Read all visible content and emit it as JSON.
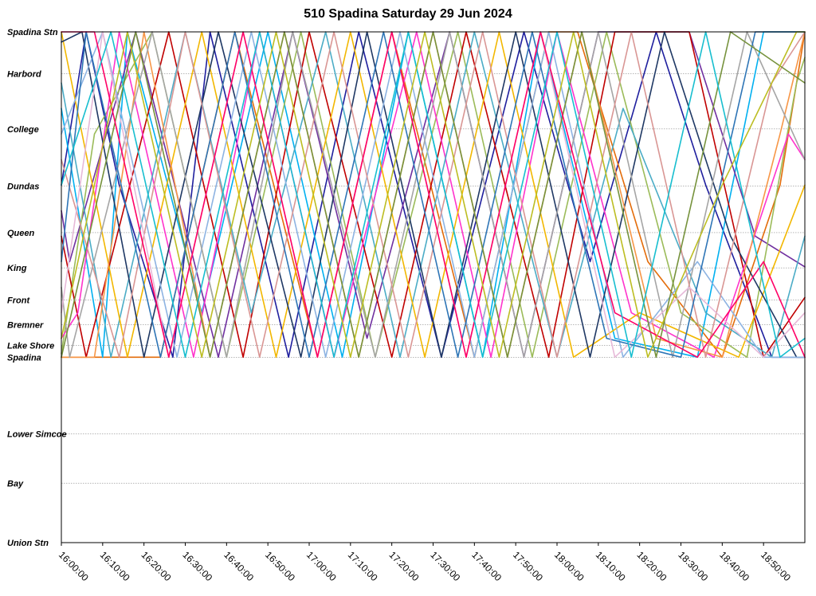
{
  "chart_data": {
    "type": "line",
    "title": "510 Spadina Saturday 29 Jun 2024",
    "xlabel": "",
    "ylabel": "",
    "x_range": [
      "16:00:00",
      "19:00:00"
    ],
    "x_ticks": [
      "16:00:00",
      "16:10:00",
      "16:20:00",
      "16:30:00",
      "16:40:00",
      "16:50:00",
      "17:00:00",
      "17:10:00",
      "17:20:00",
      "17:30:00",
      "17:40:00",
      "17:50:00",
      "18:00:00",
      "18:10:00",
      "18:20:00",
      "18:30:00",
      "18:40:00",
      "18:50:00"
    ],
    "stops": [
      "Spadina Stn",
      "Harbord",
      "College",
      "Dundas",
      "Queen",
      "King",
      "Front",
      "Bremner",
      "Lake Shore",
      "Spadina",
      "Lower Simcoe",
      "Bay",
      "Union Stn"
    ],
    "stop_positions": [
      0,
      0.082,
      0.19,
      0.302,
      0.393,
      0.462,
      0.525,
      0.573,
      0.614,
      0.637,
      0.787,
      0.884,
      1.0
    ],
    "grid": true,
    "legend": "none",
    "colors": [
      "#1f1f9e",
      "#e36c0a",
      "#00b0f0",
      "#7030a0",
      "#9bbb59",
      "#c00000",
      "#ff33cc",
      "#4bacc6",
      "#f2b700",
      "#1f3864",
      "#f79646",
      "#8db3e2",
      "#a5a5a5",
      "#d99694",
      "#2e75b6",
      "#e6b9d8",
      "#76923c",
      "#ff0066",
      "#17becf",
      "#bcbd22",
      "#8c564b",
      "#7f7f7f",
      "#f4b183",
      "#2f5597",
      "#ce2929",
      "#0070c0",
      "#92d050",
      "#ffc000",
      "#5b9bd5",
      "#b30059"
    ],
    "series": [
      {
        "values": [
          [
            "15:59:00",
            0.3
          ],
          [
            "16:06:00",
            0.0
          ],
          [
            "16:14:00",
            0.3
          ],
          [
            "16:27:00",
            0.637
          ],
          [
            "16:36:00",
            0.0
          ],
          [
            "16:55:00",
            0.637
          ],
          [
            "17:12:00",
            0.0
          ],
          [
            "17:32:00",
            0.637
          ],
          [
            "17:52:00",
            0.0
          ],
          [
            "18:08:00",
            0.45
          ],
          [
            "18:24:00",
            0.0
          ],
          [
            "18:36:00",
            0.3
          ],
          [
            "18:52:00",
            0.637
          ],
          [
            "19:00:00",
            0.637
          ]
        ]
      },
      {
        "values": [
          [
            "15:59:00",
            0.637
          ],
          [
            "16:04:00",
            0.637
          ],
          [
            "16:24:00",
            0.637
          ],
          [
            "16:42:00",
            0.0
          ],
          [
            "17:02:00",
            0.637
          ],
          [
            "17:20:00",
            0.0
          ],
          [
            "17:40:00",
            0.637
          ],
          [
            "17:58:00",
            0.0
          ],
          [
            "18:05:00",
            0.0
          ],
          [
            "18:22:00",
            0.45
          ],
          [
            "18:40:00",
            0.637
          ],
          [
            "18:54:00",
            0.3
          ],
          [
            "19:00:00",
            0.0
          ]
        ]
      },
      {
        "values": [
          [
            "15:59:00",
            0.15
          ],
          [
            "16:10:00",
            0.637
          ],
          [
            "16:16:00",
            0.0
          ],
          [
            "16:34:00",
            0.55
          ],
          [
            "16:50:00",
            0.0
          ],
          [
            "17:08:00",
            0.637
          ],
          [
            "17:24:00",
            0.0
          ],
          [
            "17:42:00",
            0.637
          ],
          [
            "17:56:00",
            0.0
          ],
          [
            "18:14:00",
            0.6
          ],
          [
            "18:34:00",
            0.637
          ],
          [
            "18:50:00",
            0.0
          ],
          [
            "19:00:00",
            0.0
          ]
        ]
      },
      {
        "values": [
          [
            "15:59:00",
            0.35
          ],
          [
            "16:02:00",
            0.45
          ],
          [
            "16:18:00",
            0.0
          ],
          [
            "16:38:00",
            0.637
          ],
          [
            "16:56:00",
            0.0
          ],
          [
            "17:14:00",
            0.6
          ],
          [
            "17:34:00",
            0.0
          ],
          [
            "17:52:00",
            0.637
          ],
          [
            "18:10:00",
            0.0
          ],
          [
            "18:28:00",
            0.0
          ],
          [
            "18:32:00",
            0.0
          ],
          [
            "18:48:00",
            0.4
          ],
          [
            "19:00:00",
            0.46
          ]
        ]
      },
      {
        "values": [
          [
            "15:59:00",
            0.63
          ],
          [
            "16:08:00",
            0.2
          ],
          [
            "16:22:00",
            0.0
          ],
          [
            "16:40:00",
            0.637
          ],
          [
            "16:58:00",
            0.0
          ],
          [
            "17:16:00",
            0.637
          ],
          [
            "17:36:00",
            0.0
          ],
          [
            "17:54:00",
            0.637
          ],
          [
            "18:12:00",
            0.0
          ],
          [
            "18:30:00",
            0.55
          ],
          [
            "18:46:00",
            0.637
          ],
          [
            "18:58:00",
            0.1
          ],
          [
            "19:00:00",
            0.05
          ]
        ]
      },
      {
        "values": [
          [
            "15:59:00",
            0.4
          ],
          [
            "16:06:00",
            0.637
          ],
          [
            "16:26:00",
            0.0
          ],
          [
            "16:44:00",
            0.637
          ],
          [
            "17:00:00",
            0.0
          ],
          [
            "17:20:00",
            0.637
          ],
          [
            "17:38:00",
            0.0
          ],
          [
            "17:58:00",
            0.637
          ],
          [
            "18:14:00",
            0.0
          ],
          [
            "18:32:00",
            0.0
          ],
          [
            "18:50:00",
            0.637
          ],
          [
            "19:00:00",
            0.52
          ]
        ]
      },
      {
        "values": [
          [
            "15:59:00",
            0.6
          ],
          [
            "16:04:00",
            0.55
          ],
          [
            "16:14:00",
            0.0
          ],
          [
            "16:32:00",
            0.637
          ],
          [
            "16:48:00",
            0.0
          ],
          [
            "17:06:00",
            0.637
          ],
          [
            "17:26:00",
            0.0
          ],
          [
            "17:44:00",
            0.637
          ],
          [
            "18:00:00",
            0.0
          ],
          [
            "18:18:00",
            0.55
          ],
          [
            "18:38:00",
            0.637
          ],
          [
            "18:56:00",
            0.2
          ],
          [
            "19:00:00",
            0.25
          ]
        ]
      },
      {
        "values": [
          [
            "15:59:00",
            0.1
          ],
          [
            "16:12:00",
            0.637
          ],
          [
            "16:30:00",
            0.0
          ],
          [
            "16:46:00",
            0.55
          ],
          [
            "17:04:00",
            0.0
          ],
          [
            "17:22:00",
            0.637
          ],
          [
            "17:40:00",
            0.0
          ],
          [
            "18:00:00",
            0.637
          ],
          [
            "18:16:00",
            0.15
          ],
          [
            "18:36:00",
            0.55
          ],
          [
            "18:52:00",
            0.637
          ],
          [
            "19:00:00",
            0.4
          ]
        ]
      },
      {
        "values": [
          [
            "15:59:00",
            0.0
          ],
          [
            "16:16:00",
            0.637
          ],
          [
            "16:34:00",
            0.0
          ],
          [
            "16:52:00",
            0.637
          ],
          [
            "17:10:00",
            0.0
          ],
          [
            "17:28:00",
            0.637
          ],
          [
            "17:46:00",
            0.0
          ],
          [
            "18:04:00",
            0.637
          ],
          [
            "18:20:00",
            0.55
          ],
          [
            "18:44:00",
            0.637
          ],
          [
            "19:00:00",
            0.3
          ]
        ]
      },
      {
        "values": [
          [
            "15:59:00",
            0.02
          ],
          [
            "16:05:00",
            0.0
          ],
          [
            "16:12:00",
            0.3
          ],
          [
            "16:20:00",
            0.637
          ],
          [
            "16:38:00",
            0.0
          ],
          [
            "16:58:00",
            0.637
          ],
          [
            "17:14:00",
            0.0
          ],
          [
            "17:32:00",
            0.637
          ],
          [
            "17:50:00",
            0.0
          ],
          [
            "18:08:00",
            0.637
          ],
          [
            "18:26:00",
            0.0
          ],
          [
            "18:42:00",
            0.4
          ],
          [
            "18:58:00",
            0.637
          ],
          [
            "19:00:00",
            0.637
          ]
        ]
      },
      {
        "values": [
          [
            "15:59:00",
            0.637
          ],
          [
            "16:08:00",
            0.637
          ],
          [
            "16:20:00",
            0.0
          ],
          [
            "16:36:00",
            0.637
          ],
          [
            "16:54:00",
            0.0
          ],
          [
            "17:12:00",
            0.637
          ],
          [
            "17:30:00",
            0.0
          ],
          [
            "17:48:00",
            0.637
          ],
          [
            "18:06:00",
            0.0
          ],
          [
            "18:24:00",
            0.6
          ],
          [
            "18:40:00",
            0.637
          ],
          [
            "18:54:00",
            0.2
          ],
          [
            "19:00:00",
            0.0
          ]
        ]
      },
      {
        "values": [
          [
            "15:59:00",
            0.2
          ],
          [
            "16:10:00",
            0.0
          ],
          [
            "16:28:00",
            0.637
          ],
          [
            "16:46:00",
            0.0
          ],
          [
            "17:04:00",
            0.637
          ],
          [
            "17:22:00",
            0.0
          ],
          [
            "17:40:00",
            0.637
          ],
          [
            "17:58:00",
            0.0
          ],
          [
            "18:16:00",
            0.637
          ],
          [
            "18:34:00",
            0.45
          ],
          [
            "18:50:00",
            0.637
          ],
          [
            "19:00:00",
            0.637
          ]
        ]
      },
      {
        "values": [
          [
            "15:59:00",
            0.5
          ],
          [
            "16:02:00",
            0.637
          ],
          [
            "16:22:00",
            0.0
          ],
          [
            "16:40:00",
            0.637
          ],
          [
            "16:56:00",
            0.0
          ],
          [
            "17:16:00",
            0.637
          ],
          [
            "17:34:00",
            0.0
          ],
          [
            "17:52:00",
            0.637
          ],
          [
            "18:10:00",
            0.0
          ],
          [
            "18:28:00",
            0.637
          ],
          [
            "18:46:00",
            0.0
          ],
          [
            "19:00:00",
            0.25
          ]
        ]
      },
      {
        "values": [
          [
            "15:59:00",
            0.25
          ],
          [
            "16:14:00",
            0.637
          ],
          [
            "16:30:00",
            0.0
          ],
          [
            "16:48:00",
            0.637
          ],
          [
            "17:06:00",
            0.0
          ],
          [
            "17:24:00",
            0.637
          ],
          [
            "17:42:00",
            0.0
          ],
          [
            "18:00:00",
            0.637
          ],
          [
            "18:18:00",
            0.0
          ],
          [
            "18:36:00",
            0.637
          ],
          [
            "18:52:00",
            0.1
          ],
          [
            "19:00:00",
            0.0
          ]
        ]
      },
      {
        "values": [
          [
            "15:59:00",
            0.45
          ],
          [
            "16:06:00",
            0.0
          ],
          [
            "16:24:00",
            0.637
          ],
          [
            "16:42:00",
            0.0
          ],
          [
            "17:00:00",
            0.637
          ],
          [
            "17:18:00",
            0.0
          ],
          [
            "17:36:00",
            0.637
          ],
          [
            "17:54:00",
            0.0
          ],
          [
            "18:12:00",
            0.6
          ],
          [
            "18:30:00",
            0.637
          ],
          [
            "18:48:00",
            0.0
          ],
          [
            "19:00:00",
            0.0
          ]
        ]
      },
      {
        "values": [
          [
            "15:59:00",
            0.55
          ],
          [
            "16:10:00",
            0.0
          ],
          [
            "16:26:00",
            0.637
          ],
          [
            "16:44:00",
            0.0
          ],
          [
            "17:02:00",
            0.637
          ],
          [
            "17:20:00",
            0.0
          ],
          [
            "17:38:00",
            0.637
          ],
          [
            "17:56:00",
            0.0
          ],
          [
            "18:14:00",
            0.637
          ],
          [
            "18:32:00",
            0.5
          ],
          [
            "18:50:00",
            0.637
          ],
          [
            "19:00:00",
            0.55
          ]
        ]
      },
      {
        "values": [
          [
            "15:59:00",
            0.637
          ],
          [
            "16:18:00",
            0.0
          ],
          [
            "16:36:00",
            0.637
          ],
          [
            "16:54:00",
            0.0
          ],
          [
            "17:12:00",
            0.637
          ],
          [
            "17:30:00",
            0.0
          ],
          [
            "17:48:00",
            0.637
          ],
          [
            "18:06:00",
            0.0
          ],
          [
            "18:24:00",
            0.637
          ],
          [
            "18:42:00",
            0.0
          ],
          [
            "19:00:00",
            0.1
          ]
        ]
      },
      {
        "values": [
          [
            "15:59:00",
            0.0
          ],
          [
            "16:08:00",
            0.0
          ],
          [
            "16:26:00",
            0.637
          ],
          [
            "16:44:00",
            0.0
          ],
          [
            "17:02:00",
            0.637
          ],
          [
            "17:20:00",
            0.0
          ],
          [
            "17:38:00",
            0.637
          ],
          [
            "17:56:00",
            0.0
          ],
          [
            "18:14:00",
            0.55
          ],
          [
            "18:34:00",
            0.637
          ],
          [
            "18:50:00",
            0.45
          ],
          [
            "19:00:00",
            0.637
          ]
        ]
      },
      {
        "values": [
          [
            "15:59:00",
            0.3
          ],
          [
            "16:12:00",
            0.0
          ],
          [
            "16:30:00",
            0.637
          ],
          [
            "16:48:00",
            0.0
          ],
          [
            "17:06:00",
            0.637
          ],
          [
            "17:24:00",
            0.0
          ],
          [
            "17:42:00",
            0.637
          ],
          [
            "18:00:00",
            0.0
          ],
          [
            "18:18:00",
            0.637
          ],
          [
            "18:36:00",
            0.0
          ],
          [
            "18:54:00",
            0.637
          ],
          [
            "19:00:00",
            0.6
          ]
        ]
      },
      {
        "values": [
          [
            "15:59:00",
            0.6
          ],
          [
            "16:16:00",
            0.0
          ],
          [
            "16:34:00",
            0.637
          ],
          [
            "16:52:00",
            0.0
          ],
          [
            "17:10:00",
            0.637
          ],
          [
            "17:28:00",
            0.0
          ],
          [
            "17:46:00",
            0.637
          ],
          [
            "18:04:00",
            0.0
          ],
          [
            "18:22:00",
            0.637
          ],
          [
            "18:40:00",
            0.3
          ],
          [
            "18:58:00",
            0.0
          ],
          [
            "19:00:00",
            0.0
          ]
        ]
      }
    ]
  }
}
